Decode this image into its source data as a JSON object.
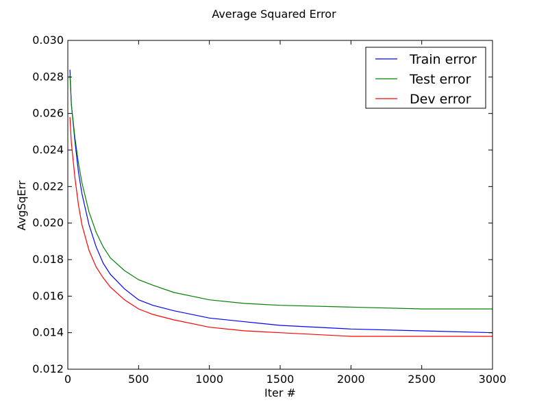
{
  "chart_data": {
    "type": "line",
    "title": "Average Squared Error",
    "xlabel": "Iter #",
    "ylabel": "AvgSqErr",
    "xlim": [
      0,
      3000
    ],
    "ylim": [
      0.012,
      0.03
    ],
    "xticks": [
      0,
      500,
      1000,
      1500,
      2000,
      2500,
      3000
    ],
    "xtick_labels": [
      "0",
      "500",
      "1000",
      "1500",
      "2000",
      "2500",
      "3000"
    ],
    "yticks": [
      0.012,
      0.014,
      0.016,
      0.018,
      0.02,
      0.022,
      0.024,
      0.026,
      0.028,
      0.03
    ],
    "ytick_labels": [
      "0.012",
      "0.014",
      "0.016",
      "0.018",
      "0.020",
      "0.022",
      "0.024",
      "0.026",
      "0.028",
      "0.030"
    ],
    "grid": false,
    "legend_position": "top-right",
    "series": [
      {
        "name": "Train error",
        "color": "#0000ff",
        "x": [
          15,
          25,
          50,
          75,
          100,
          150,
          200,
          250,
          300,
          400,
          500,
          600,
          750,
          1000,
          1250,
          1500,
          2000,
          2500,
          3000
        ],
        "y": [
          0.0284,
          0.0265,
          0.0245,
          0.0228,
          0.0216,
          0.0199,
          0.0187,
          0.0178,
          0.0172,
          0.0164,
          0.0158,
          0.0155,
          0.0152,
          0.0148,
          0.0146,
          0.0144,
          0.0142,
          0.0141,
          0.014
        ]
      },
      {
        "name": "Test error",
        "color": "#008000",
        "x": [
          15,
          25,
          50,
          75,
          100,
          150,
          200,
          250,
          300,
          400,
          500,
          600,
          750,
          1000,
          1250,
          1500,
          2000,
          2500,
          3000
        ],
        "y": [
          0.0281,
          0.0265,
          0.0247,
          0.0233,
          0.0222,
          0.0206,
          0.0195,
          0.0187,
          0.0181,
          0.0174,
          0.0169,
          0.0166,
          0.0162,
          0.0158,
          0.0156,
          0.0155,
          0.0154,
          0.0153,
          0.0153
        ]
      },
      {
        "name": "Dev error",
        "color": "#ff0000",
        "x": [
          15,
          25,
          50,
          75,
          100,
          150,
          200,
          250,
          300,
          400,
          500,
          600,
          750,
          1000,
          1250,
          1500,
          2000,
          2500,
          3000
        ],
        "y": [
          0.0258,
          0.0244,
          0.0225,
          0.021,
          0.0199,
          0.0185,
          0.0176,
          0.017,
          0.0165,
          0.0158,
          0.0153,
          0.015,
          0.0147,
          0.0143,
          0.0141,
          0.014,
          0.0138,
          0.0138,
          0.0138
        ]
      }
    ]
  }
}
